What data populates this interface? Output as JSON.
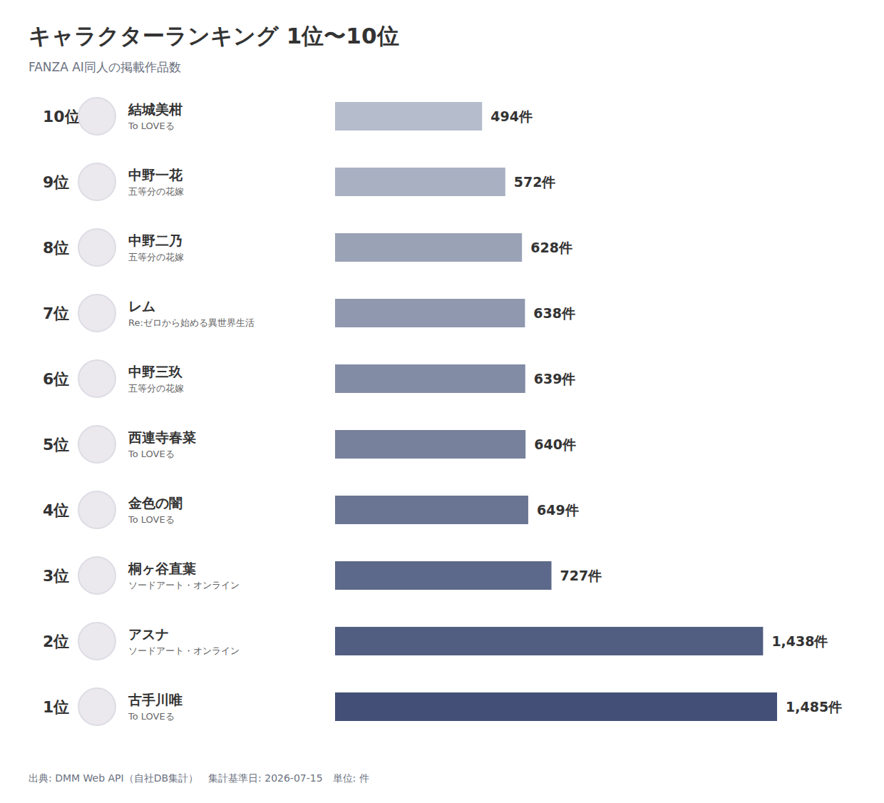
{
  "chart_data": {
    "type": "bar",
    "orientation": "horizontal",
    "title": "キャラクターランキング 1位〜10位",
    "subtitle": "FANZA AI同人の掲載作品数",
    "source": "出典: DMM Web API（自社DB集計）　集計基準日: 2026-07-15　単位: 件",
    "categories": [
      "結城美柑",
      "中野一花",
      "中野二乃",
      "レム",
      "中野三玖",
      "西連寺春菜",
      "金色の闇",
      "桐ヶ谷直葉",
      "アスナ",
      "古手川唯"
    ],
    "rank_labels": [
      "10位",
      "9位",
      "8位",
      "7位",
      "6位",
      "5位",
      "4位",
      "3位",
      "2位",
      "1位"
    ],
    "series_titles": [
      "To LOVEる",
      "五等分の花嫁",
      "五等分の花嫁",
      "Re:ゼロから始める異世界生活",
      "五等分の花嫁",
      "To LOVEる",
      "To LOVEる",
      "ソードアート・オンライン",
      "ソードアート・オンライン",
      "To LOVEる"
    ],
    "values": [
      494,
      572,
      628,
      638,
      639,
      640,
      649,
      727,
      1438,
      1485
    ],
    "value_labels": [
      "494件",
      "572件",
      "628件",
      "638件",
      "639件",
      "640件",
      "649件",
      "727件",
      "1,438件",
      "1,485件"
    ],
    "colors": [
      "#b5bccb",
      "#a9b0c2",
      "#9aa2b6",
      "#8f98ae",
      "#838ca5",
      "#77819c",
      "#6a7594",
      "#5d698a",
      "#515e82",
      "#434f76"
    ],
    "xlim": [
      0,
      1485
    ],
    "data_labels": true,
    "tick_labels": "y",
    "grid": false
  }
}
